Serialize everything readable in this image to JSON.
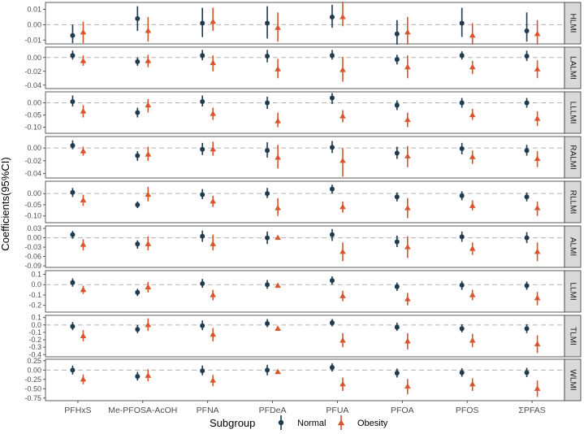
{
  "chart_data": {
    "type": "forest",
    "ylabel": "Coefficients(95%CI)",
    "categories": [
      "PFHxS",
      "Me-PFOSA-AcOH",
      "PFNA",
      "PFDeA",
      "PFUA",
      "PFOA",
      "PFOS",
      "ΣPFAS"
    ],
    "legend": {
      "title": "Subgroup",
      "placement": "bottom",
      "items": [
        {
          "label": "Normal",
          "color": "#1f3b4d",
          "shape": "circle"
        },
        {
          "label": "Obesity",
          "color": "#d9532b",
          "shape": "triangle"
        }
      ]
    },
    "series_colors": {
      "Normal": "#1f3b4d",
      "Obesity": "#d9532b"
    },
    "panels": [
      {
        "label": "HLMI",
        "ylim": [
          -0.0125,
          0.0145
        ],
        "ticks": [
          0.01,
          0.0,
          -0.01
        ],
        "tick_labels": [
          "0.01",
          "0.00",
          "-0.01"
        ],
        "normal": [
          [
            -0.007,
            -0.012,
            0.0
          ],
          [
            0.004,
            -0.004,
            0.012
          ],
          [
            0.001,
            -0.008,
            0.011
          ],
          [
            0.001,
            -0.009,
            0.012
          ],
          [
            0.005,
            -0.002,
            0.013
          ],
          [
            -0.006,
            -0.013,
            0.003
          ],
          [
            0.001,
            -0.008,
            0.011
          ],
          [
            -0.004,
            -0.011,
            0.008
          ]
        ],
        "obesity": [
          [
            -0.005,
            -0.012,
            0.002
          ],
          [
            -0.004,
            -0.011,
            0.005
          ],
          [
            0.002,
            -0.004,
            0.011
          ],
          [
            -0.002,
            -0.011,
            0.008
          ],
          [
            0.005,
            -0.001,
            0.015
          ],
          [
            -0.005,
            -0.013,
            0.005
          ],
          [
            -0.007,
            -0.013,
            0.001
          ],
          [
            -0.006,
            -0.013,
            0.003
          ]
        ]
      },
      {
        "label": "LALMI",
        "ylim": [
          -0.045,
          0.015
        ],
        "ticks": [
          0.0,
          -0.02,
          -0.04
        ],
        "tick_labels": [
          "0.00",
          "-0.02",
          "-0.04"
        ],
        "normal": [
          [
            0.003,
            -0.003,
            0.01
          ],
          [
            -0.006,
            -0.012,
            0.0
          ],
          [
            0.003,
            -0.004,
            0.011
          ],
          [
            0.002,
            -0.007,
            0.011
          ],
          [
            0.003,
            -0.003,
            0.011
          ],
          [
            -0.003,
            -0.01,
            0.004
          ],
          [
            0.003,
            -0.003,
            0.009
          ],
          [
            0.002,
            -0.005,
            0.01
          ]
        ],
        "obesity": [
          [
            -0.005,
            -0.012,
            0.003
          ],
          [
            -0.005,
            -0.014,
            0.004
          ],
          [
            -0.008,
            -0.02,
            0.003
          ],
          [
            -0.017,
            -0.03,
            -0.002
          ],
          [
            -0.018,
            -0.035,
            0.001
          ],
          [
            -0.014,
            -0.03,
            0.003
          ],
          [
            -0.014,
            -0.024,
            -0.005
          ],
          [
            -0.017,
            -0.03,
            -0.004
          ]
        ]
      },
      {
        "label": "LLLMI",
        "ylim": [
          -0.125,
          0.045
        ],
        "ticks": [
          0.0,
          -0.05,
          -0.1
        ],
        "tick_labels": [
          "0.00",
          "-0.05",
          "-0.10"
        ],
        "normal": [
          [
            0.005,
            -0.015,
            0.03
          ],
          [
            -0.04,
            -0.06,
            -0.02
          ],
          [
            0.005,
            -0.015,
            0.03
          ],
          [
            0.0,
            -0.025,
            0.025
          ],
          [
            0.02,
            -0.005,
            0.04
          ],
          [
            -0.01,
            -0.03,
            0.01
          ],
          [
            0.0,
            -0.02,
            0.02
          ],
          [
            0.0,
            -0.02,
            0.02
          ]
        ],
        "obesity": [
          [
            -0.035,
            -0.06,
            -0.01
          ],
          [
            -0.01,
            -0.04,
            0.015
          ],
          [
            -0.045,
            -0.07,
            -0.02
          ],
          [
            -0.075,
            -0.1,
            -0.04
          ],
          [
            -0.055,
            -0.08,
            -0.03
          ],
          [
            -0.07,
            -0.1,
            -0.04
          ],
          [
            -0.05,
            -0.07,
            -0.025
          ],
          [
            -0.065,
            -0.095,
            -0.035
          ]
        ]
      },
      {
        "label": "RALMI",
        "ylim": [
          -0.047,
          0.018
        ],
        "ticks": [
          0.0,
          -0.02,
          -0.04
        ],
        "tick_labels": [
          "0.00",
          "-0.02",
          "-0.04"
        ],
        "normal": [
          [
            0.004,
            -0.002,
            0.012
          ],
          [
            -0.012,
            -0.02,
            -0.005
          ],
          [
            -0.002,
            -0.011,
            0.008
          ],
          [
            -0.004,
            -0.015,
            0.009
          ],
          [
            0.001,
            -0.008,
            0.011
          ],
          [
            -0.008,
            -0.017,
            0.002
          ],
          [
            -0.001,
            -0.01,
            0.008
          ],
          [
            -0.004,
            -0.012,
            0.005
          ]
        ],
        "obesity": [
          [
            -0.005,
            -0.012,
            0.002
          ],
          [
            -0.01,
            -0.02,
            0.002
          ],
          [
            -0.002,
            -0.012,
            0.01
          ],
          [
            -0.015,
            -0.032,
            0.005
          ],
          [
            -0.02,
            -0.045,
            0.0
          ],
          [
            -0.013,
            -0.03,
            0.003
          ],
          [
            -0.014,
            -0.025,
            -0.004
          ],
          [
            -0.017,
            -0.03,
            -0.005
          ]
        ]
      },
      {
        "label": "RLLMI",
        "ylim": [
          -0.13,
          0.055
        ],
        "ticks": [
          0.0,
          -0.05,
          -0.1
        ],
        "tick_labels": [
          "0.00",
          "-0.05",
          "-0.10"
        ],
        "normal": [
          [
            0.005,
            -0.015,
            0.025
          ],
          [
            -0.05,
            -0.065,
            -0.035
          ],
          [
            -0.005,
            -0.025,
            0.02
          ],
          [
            0.0,
            -0.02,
            0.025
          ],
          [
            0.02,
            0.0,
            0.04
          ],
          [
            -0.015,
            -0.035,
            0.005
          ],
          [
            -0.01,
            -0.03,
            0.01
          ],
          [
            -0.015,
            -0.035,
            0.005
          ]
        ],
        "obesity": [
          [
            -0.03,
            -0.055,
            -0.005
          ],
          [
            -0.005,
            -0.035,
            0.03
          ],
          [
            -0.035,
            -0.06,
            -0.01
          ],
          [
            -0.065,
            -0.1,
            -0.02
          ],
          [
            -0.06,
            -0.085,
            -0.035
          ],
          [
            -0.065,
            -0.11,
            -0.02
          ],
          [
            -0.055,
            -0.075,
            -0.03
          ],
          [
            -0.065,
            -0.1,
            -0.035
          ]
        ]
      },
      {
        "label": "ALMI",
        "ylim": [
          -0.095,
          0.038
        ],
        "ticks": [
          0.03,
          0.0,
          -0.03,
          -0.06,
          -0.09
        ],
        "tick_labels": [
          "0.03",
          "0.00",
          "-0.03",
          "-0.06",
          "-0.09"
        ],
        "normal": [
          [
            0.01,
            -0.003,
            0.022
          ],
          [
            -0.02,
            -0.035,
            -0.008
          ],
          [
            0.005,
            -0.013,
            0.023
          ],
          [
            0.0,
            -0.02,
            0.02
          ],
          [
            0.01,
            -0.01,
            0.028
          ],
          [
            -0.013,
            -0.03,
            0.007
          ],
          [
            0.003,
            -0.013,
            0.02
          ],
          [
            0.0,
            -0.017,
            0.018
          ]
        ],
        "obesity": [
          [
            -0.022,
            -0.04,
            -0.005
          ],
          [
            -0.02,
            -0.04,
            0.005
          ],
          [
            -0.02,
            -0.04,
            0.01
          ],
          [
            0.0,
            -0.005,
            0.003
          ],
          [
            -0.045,
            -0.075,
            -0.015
          ],
          [
            -0.03,
            -0.065,
            0.005
          ],
          [
            -0.035,
            -0.055,
            -0.015
          ],
          [
            -0.045,
            -0.075,
            -0.015
          ]
        ]
      },
      {
        "label": "LLMI",
        "ylim": [
          -0.265,
          0.135
        ],
        "ticks": [
          0.1,
          0.0,
          -0.1,
          -0.2
        ],
        "tick_labels": [
          "0.1",
          "0.0",
          "-0.1",
          "-0.2"
        ],
        "normal": [
          [
            0.02,
            -0.02,
            0.06
          ],
          [
            -0.075,
            -0.11,
            -0.04
          ],
          [
            0.01,
            -0.03,
            0.055
          ],
          [
            0.0,
            -0.04,
            0.045
          ],
          [
            0.04,
            0.0,
            0.08
          ],
          [
            -0.02,
            -0.06,
            0.02
          ],
          [
            -0.005,
            -0.05,
            0.035
          ],
          [
            -0.01,
            -0.05,
            0.03
          ]
        ],
        "obesity": [
          [
            -0.05,
            -0.09,
            -0.01
          ],
          [
            -0.025,
            -0.075,
            0.025
          ],
          [
            -0.1,
            -0.15,
            -0.05
          ],
          [
            -0.01,
            -0.015,
            -0.005
          ],
          [
            -0.11,
            -0.16,
            -0.06
          ],
          [
            -0.14,
            -0.2,
            -0.08
          ],
          [
            -0.1,
            -0.15,
            -0.05
          ],
          [
            -0.13,
            -0.2,
            -0.07
          ]
        ]
      },
      {
        "label": "TLMI",
        "ylim": [
          -0.43,
          0.13
        ],
        "ticks": [
          0.1,
          0.0,
          -0.1,
          -0.2,
          -0.3,
          -0.4
        ],
        "tick_labels": [
          "0.1",
          "0.0",
          "-0.1",
          "-0.2",
          "-0.3",
          "-0.4"
        ],
        "normal": [
          [
            -0.02,
            -0.07,
            0.04
          ],
          [
            -0.06,
            -0.11,
            0.0
          ],
          [
            -0.01,
            -0.07,
            0.06
          ],
          [
            0.02,
            -0.03,
            0.08
          ],
          [
            0.03,
            -0.02,
            0.08
          ],
          [
            -0.03,
            -0.08,
            0.03
          ],
          [
            -0.05,
            -0.1,
            0.01
          ],
          [
            -0.05,
            -0.11,
            0.01
          ]
        ],
        "obesity": [
          [
            -0.15,
            -0.22,
            -0.07
          ],
          [
            0.0,
            -0.08,
            0.09
          ],
          [
            -0.13,
            -0.22,
            -0.04
          ],
          [
            -0.05,
            -0.07,
            -0.03
          ],
          [
            -0.21,
            -0.3,
            -0.11
          ],
          [
            -0.22,
            -0.33,
            -0.11
          ],
          [
            -0.21,
            -0.3,
            -0.12
          ],
          [
            -0.26,
            -0.38,
            -0.14
          ]
        ]
      },
      {
        "label": "WLMI",
        "ylim": [
          -0.82,
          0.29
        ],
        "ticks": [
          0.25,
          0.0,
          -0.25,
          -0.5,
          -0.75
        ],
        "tick_labels": [
          "0.25",
          "0.00",
          "-0.25",
          "-0.50",
          "-0.75"
        ],
        "normal": [
          [
            0.0,
            -0.12,
            0.12
          ],
          [
            -0.17,
            -0.28,
            -0.05
          ],
          [
            -0.02,
            -0.14,
            0.12
          ],
          [
            0.0,
            -0.14,
            0.14
          ],
          [
            0.07,
            -0.04,
            0.18
          ],
          [
            -0.08,
            -0.2,
            0.04
          ],
          [
            -0.07,
            -0.18,
            0.05
          ],
          [
            -0.07,
            -0.19,
            0.06
          ]
        ],
        "obesity": [
          [
            -0.25,
            -0.38,
            -0.12
          ],
          [
            -0.15,
            -0.3,
            0.02
          ],
          [
            -0.28,
            -0.43,
            -0.13
          ],
          [
            -0.05,
            -0.08,
            -0.02
          ],
          [
            -0.38,
            -0.56,
            -0.2
          ],
          [
            -0.44,
            -0.65,
            -0.24
          ],
          [
            -0.38,
            -0.56,
            -0.22
          ],
          [
            -0.5,
            -0.72,
            -0.28
          ]
        ]
      }
    ]
  }
}
